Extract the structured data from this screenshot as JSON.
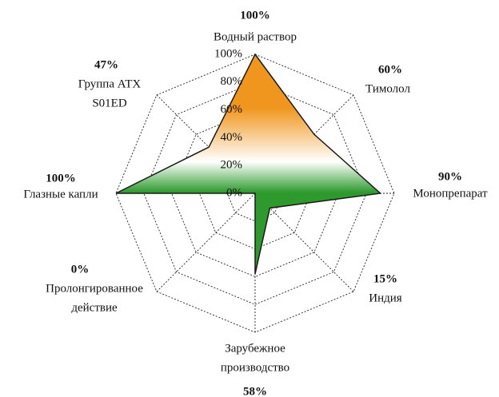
{
  "chart_data": {
    "type": "radar",
    "categories": [
      [
        "Водный раствор"
      ],
      [
        "Тимолол"
      ],
      [
        "Монопрепарат"
      ],
      [
        "Индия"
      ],
      [
        "Зарубежное",
        "производство"
      ],
      [
        "Пролонгированное",
        "действие"
      ],
      [
        "Глазные капли"
      ],
      [
        "Группа АТХ",
        "S01ED"
      ]
    ],
    "values": [
      100,
      60,
      90,
      15,
      58,
      0,
      100,
      47
    ],
    "value_labels": [
      "100%",
      "60%",
      "90%",
      "15%",
      "58%",
      "0%",
      "100%",
      "47%"
    ],
    "ylim": [
      0,
      100
    ],
    "yticks": [
      {
        "value": 0,
        "label": "0%"
      },
      {
        "value": 20,
        "label": "20%"
      },
      {
        "value": 40,
        "label": "40%"
      },
      {
        "value": 60,
        "label": "60%"
      },
      {
        "value": 80,
        "label": "80%"
      },
      {
        "value": 100,
        "label": "100%"
      }
    ],
    "color_top": "#f0961e",
    "color_bottom": "#2e9a2e",
    "grid": true
  }
}
